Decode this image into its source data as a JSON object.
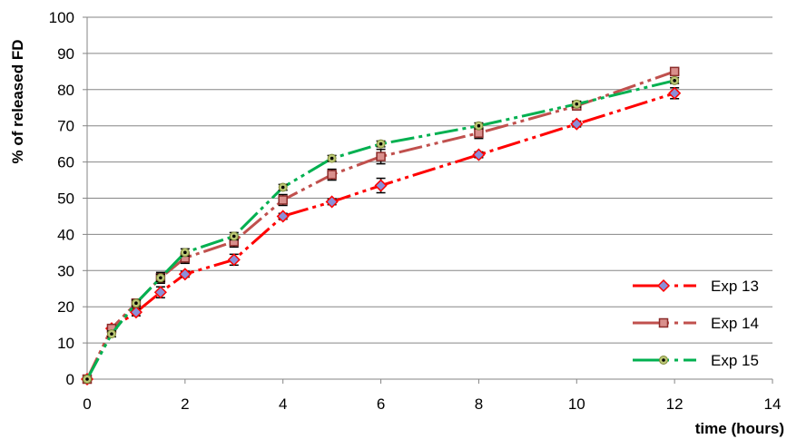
{
  "chart_data": {
    "type": "line",
    "title": "",
    "xlabel": "time (hours)",
    "ylabel": "% of released FD",
    "xlim": [
      0,
      14
    ],
    "ylim": [
      0,
      100
    ],
    "x_ticks": [
      0,
      2,
      4,
      6,
      8,
      10,
      12,
      14
    ],
    "y_ticks": [
      0,
      10,
      20,
      30,
      40,
      50,
      60,
      70,
      80,
      90,
      100
    ],
    "grid": "horizontal",
    "legend_position": "bottom-right",
    "x": [
      0,
      0.5,
      1,
      1.5,
      2,
      3,
      4,
      5,
      6,
      8,
      10,
      12
    ],
    "series": [
      {
        "name": "Exp 13",
        "line_color": "#ff0000",
        "marker": "diamond",
        "marker_fill": "#8b8fd8",
        "values": [
          0,
          14,
          18.5,
          24,
          29,
          33,
          45,
          49,
          53.5,
          62,
          70.5,
          79
        ],
        "errors": [
          0,
          0.8,
          1,
          1.5,
          0.8,
          1.5,
          0.8,
          0.8,
          2,
          0.8,
          0.8,
          1.5
        ]
      },
      {
        "name": "Exp 14",
        "line_color": "#c0504d",
        "marker": "square",
        "marker_fill": "#d98f8c",
        "values": [
          0,
          14,
          21,
          28,
          33.5,
          38,
          49.5,
          56.5,
          61.5,
          68,
          75.5,
          85
        ],
        "errors": [
          0,
          1,
          1,
          1.5,
          1.5,
          1.5,
          1.5,
          1.5,
          2,
          1.5,
          0.8,
          0.8
        ]
      },
      {
        "name": "Exp 15",
        "line_color": "#00b050",
        "marker": "circle",
        "marker_fill": "#000000",
        "values": [
          0,
          12.5,
          21,
          28,
          35,
          39.5,
          53,
          61,
          65,
          70,
          76,
          82.5
        ],
        "errors": [
          0,
          0.8,
          0.8,
          1,
          1,
          1,
          0.8,
          0.8,
          0.8,
          0.8,
          0.8,
          0.8
        ]
      }
    ]
  }
}
